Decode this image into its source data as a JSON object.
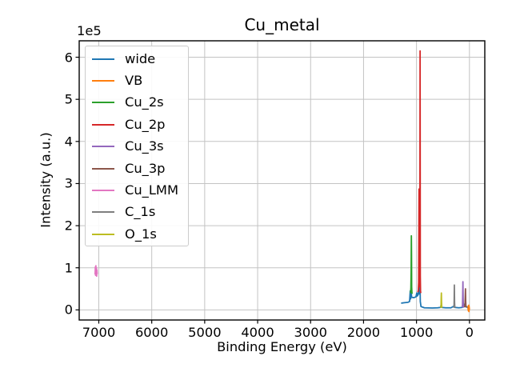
{
  "figure": {
    "title": "Cu_metal",
    "xlabel": "Binding Energy (eV)",
    "ylabel": "Intensity (a.u.)",
    "offset_text": "1e5"
  },
  "colors": {
    "background": "#ffffff",
    "grid": "#c3c3c3",
    "spine": "#000000",
    "text": "#000000",
    "legend_border": "#cccccc"
  },
  "chart_data": {
    "type": "line",
    "title": "Cu_metal",
    "xlabel": "Binding Energy (eV)",
    "ylabel": "Intensity (a.u.)",
    "y_offset_scale": "1e5",
    "x_inverted": true,
    "xlim": [
      7370,
      -290
    ],
    "ylim": [
      -24000,
      639000
    ],
    "grid": true,
    "legend_position": "upper left",
    "x_ticks": [
      7000,
      6000,
      5000,
      4000,
      3000,
      2000,
      1000,
      0
    ],
    "x_tick_labels": [
      "7000",
      "6000",
      "5000",
      "4000",
      "3000",
      "2000",
      "1000",
      "0"
    ],
    "y_ticks": [
      0,
      100000,
      200000,
      300000,
      400000,
      500000,
      600000
    ],
    "y_tick_labels": [
      "0",
      "1",
      "2",
      "3",
      "4",
      "5",
      "6"
    ],
    "series": [
      {
        "name": "wide",
        "color": "#1f77b4",
        "points": [
          [
            1290,
            16000
          ],
          [
            1230,
            17000
          ],
          [
            1160,
            18000
          ],
          [
            1130,
            20000
          ],
          [
            1118,
            45000
          ],
          [
            1112,
            26000
          ],
          [
            1100,
            43000
          ],
          [
            1092,
            30000
          ],
          [
            1050,
            29000
          ],
          [
            1010,
            31000
          ],
          [
            995,
            40000
          ],
          [
            985,
            33000
          ],
          [
            970,
            36000
          ],
          [
            955,
            52000
          ],
          [
            948,
            38000
          ],
          [
            940,
            55000
          ],
          [
            933,
            60000
          ],
          [
            928,
            20000
          ],
          [
            915,
            8000
          ],
          [
            850,
            5000
          ],
          [
            700,
            4500
          ],
          [
            600,
            5000
          ],
          [
            545,
            6000
          ],
          [
            532,
            13000
          ],
          [
            524,
            6000
          ],
          [
            450,
            5000
          ],
          [
            350,
            5000
          ],
          [
            292,
            9000
          ],
          [
            285,
            12000
          ],
          [
            278,
            6000
          ],
          [
            200,
            5000
          ],
          [
            135,
            6000
          ],
          [
            123,
            13000
          ],
          [
            114,
            7000
          ],
          [
            80,
            16000
          ],
          [
            73,
            9000
          ],
          [
            40,
            6000
          ],
          [
            10,
            5000
          ],
          [
            0,
            4000
          ]
        ]
      },
      {
        "name": "VB",
        "color": "#ff7f0e",
        "points": [
          [
            27,
            1000
          ],
          [
            24,
            9000
          ],
          [
            21,
            -2000
          ],
          [
            18,
            10000
          ],
          [
            15,
            0
          ],
          [
            12,
            11000
          ],
          [
            9,
            -4000
          ],
          [
            6,
            8000
          ],
          [
            3,
            1000
          ],
          [
            0,
            4000
          ]
        ]
      },
      {
        "name": "Cu_2s",
        "color": "#2ca02c",
        "points": [
          [
            1112,
            40000
          ],
          [
            1106,
            52000
          ],
          [
            1101,
            90000
          ],
          [
            1097,
            176000
          ],
          [
            1094,
            130000
          ],
          [
            1091,
            55000
          ],
          [
            1086,
            40000
          ],
          [
            1080,
            38000
          ]
        ]
      },
      {
        "name": "Cu_2p",
        "color": "#d62728",
        "points": [
          [
            974,
            42000
          ],
          [
            966,
            46000
          ],
          [
            959,
            65000
          ],
          [
            952,
            287000
          ],
          [
            947,
            75000
          ],
          [
            941,
            55000
          ],
          [
            936,
            130000
          ],
          [
            932,
            615000
          ],
          [
            928,
            80000
          ],
          [
            924,
            45000
          ],
          [
            919,
            40000
          ]
        ]
      },
      {
        "name": "Cu_3s",
        "color": "#9467bd",
        "points": [
          [
            136,
            6000
          ],
          [
            131,
            12000
          ],
          [
            127,
            38000
          ],
          [
            123,
            67000
          ],
          [
            119,
            28000
          ],
          [
            115,
            10000
          ],
          [
            111,
            6000
          ]
        ]
      },
      {
        "name": "Cu_3p",
        "color": "#8c564b",
        "points": [
          [
            89,
            6000
          ],
          [
            84,
            13000
          ],
          [
            79,
            32000
          ],
          [
            75,
            50000
          ],
          [
            71,
            22000
          ],
          [
            67,
            10000
          ],
          [
            63,
            6000
          ]
        ]
      },
      {
        "name": "Cu_LMM",
        "color": "#e377c2",
        "points": [
          [
            7070,
            84000
          ],
          [
            7065,
            102000
          ],
          [
            7060,
            82000
          ],
          [
            7055,
            105000
          ],
          [
            7050,
            86000
          ],
          [
            7045,
            100000
          ],
          [
            7040,
            80000
          ],
          [
            7035,
            95000
          ],
          [
            7030,
            85000
          ]
        ]
      },
      {
        "name": "C_1s",
        "color": "#7f7f7f",
        "points": [
          [
            296,
            5000
          ],
          [
            291,
            9000
          ],
          [
            288,
            28000
          ],
          [
            285,
            59000
          ],
          [
            281,
            18000
          ],
          [
            277,
            8000
          ],
          [
            273,
            5000
          ]
        ]
      },
      {
        "name": "O_1s",
        "color": "#bcbd22",
        "points": [
          [
            541,
            5000
          ],
          [
            536,
            11000
          ],
          [
            533,
            30000
          ],
          [
            530,
            40000
          ],
          [
            526,
            15000
          ],
          [
            522,
            7000
          ],
          [
            518,
            5000
          ]
        ]
      }
    ]
  }
}
